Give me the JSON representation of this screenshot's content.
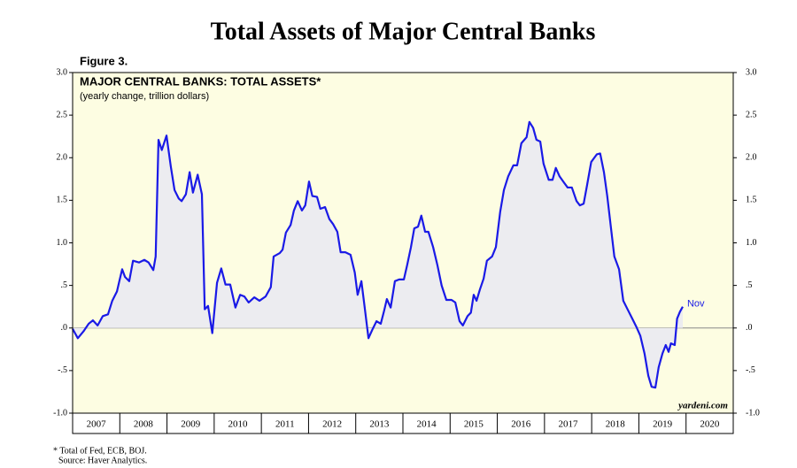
{
  "chart_data": {
    "type": "area_line",
    "title": "Total Assets of Major Central Banks",
    "figure_label": "Figure 3.",
    "inner_title": "MAJOR CENTRAL BANKS: TOTAL ASSETS*",
    "subtitle": "(yearly change, trillion dollars)",
    "end_annotation": "Nov",
    "source_brand": "yardeni.com",
    "footnotes": [
      "*  Total of Fed, ECB, BOJ.",
      "Source: Haver Analytics."
    ],
    "xlim": [
      2007,
      2021
    ],
    "xticks": [
      2007,
      2008,
      2009,
      2010,
      2011,
      2012,
      2013,
      2014,
      2015,
      2016,
      2017,
      2018,
      2019,
      2020
    ],
    "ylim": [
      -1,
      3
    ],
    "yticks": [
      {
        "value": -1,
        "label": "-1.0"
      },
      {
        "value": -0.5,
        "label": "-.5"
      },
      {
        "value": 0,
        "label": ".0"
      },
      {
        "value": 0.5,
        "label": ".5"
      },
      {
        "value": 1,
        "label": "1.0"
      },
      {
        "value": 1.5,
        "label": "1.5"
      },
      {
        "value": 2,
        "label": "2.0"
      },
      {
        "value": 2.5,
        "label": "2.5"
      },
      {
        "value": 3,
        "label": "3.0"
      }
    ],
    "series": [
      {
        "name": "Total assets yearly change",
        "color": "#1a1ae6",
        "fill": "#ececf0",
        "x": [
          2007.0,
          2007.11,
          2007.23,
          2007.34,
          2007.43,
          2007.53,
          2007.64,
          2007.75,
          2007.84,
          2007.94,
          2007.99,
          2008.05,
          2008.11,
          2008.2,
          2008.28,
          2008.41,
          2008.52,
          2008.61,
          2008.71,
          2008.76,
          2008.82,
          2008.89,
          2008.99,
          2009.08,
          2009.16,
          2009.25,
          2009.31,
          2009.4,
          2009.48,
          2009.55,
          2009.65,
          2009.74,
          2009.8,
          2009.87,
          2009.96,
          2010.06,
          2010.15,
          2010.24,
          2010.34,
          2010.45,
          2010.55,
          2010.64,
          2010.73,
          2010.85,
          2010.96,
          2011.09,
          2011.2,
          2011.26,
          2011.39,
          2011.45,
          2011.52,
          2011.62,
          2011.69,
          2011.77,
          2011.86,
          2011.93,
          2012.01,
          2012.08,
          2012.18,
          2012.25,
          2012.35,
          2012.44,
          2012.52,
          2012.61,
          2012.68,
          2012.78,
          2012.89,
          2012.98,
          2013.04,
          2013.12,
          2013.19,
          2013.27,
          2013.36,
          2013.44,
          2013.53,
          2013.6,
          2013.66,
          2013.74,
          2013.83,
          2013.92,
          2014.02,
          2014.09,
          2014.17,
          2014.24,
          2014.32,
          2014.39,
          2014.47,
          2014.54,
          2014.64,
          2014.73,
          2014.82,
          2014.92,
          2015.03,
          2015.11,
          2015.2,
          2015.27,
          2015.37,
          2015.44,
          2015.5,
          2015.56,
          2015.63,
          2015.71,
          2015.78,
          2015.89,
          2015.97,
          2016.06,
          2016.14,
          2016.23,
          2016.34,
          2016.42,
          2016.51,
          2016.62,
          2016.68,
          2016.76,
          2016.83,
          2016.91,
          2016.98,
          2017.09,
          2017.17,
          2017.24,
          2017.32,
          2017.41,
          2017.49,
          2017.58,
          2017.68,
          2017.75,
          2017.83,
          2017.9,
          2017.99,
          2018.11,
          2018.18,
          2018.26,
          2018.33,
          2018.41,
          2018.48,
          2018.58,
          2018.67,
          2018.76,
          2018.86,
          2018.95,
          2019.03,
          2019.12,
          2019.2,
          2019.27,
          2019.35,
          2019.42,
          2019.5,
          2019.57,
          2019.63,
          2019.68,
          2019.76,
          2019.81,
          2019.87,
          2019.93
        ],
        "values": [
          -0.01,
          -0.12,
          -0.04,
          0.05,
          0.09,
          0.03,
          0.14,
          0.16,
          0.32,
          0.43,
          0.55,
          0.69,
          0.6,
          0.55,
          0.79,
          0.77,
          0.8,
          0.77,
          0.68,
          0.84,
          2.21,
          2.09,
          2.26,
          1.9,
          1.62,
          1.52,
          1.49,
          1.57,
          1.83,
          1.59,
          1.8,
          1.57,
          0.22,
          0.26,
          -0.06,
          0.53,
          0.7,
          0.51,
          0.51,
          0.24,
          0.39,
          0.37,
          0.3,
          0.36,
          0.32,
          0.37,
          0.48,
          0.84,
          0.88,
          0.92,
          1.12,
          1.21,
          1.38,
          1.49,
          1.38,
          1.44,
          1.72,
          1.55,
          1.54,
          1.4,
          1.42,
          1.28,
          1.22,
          1.13,
          0.89,
          0.89,
          0.86,
          0.65,
          0.39,
          0.55,
          0.24,
          -0.12,
          -0.01,
          0.08,
          0.05,
          0.2,
          0.34,
          0.24,
          0.55,
          0.57,
          0.57,
          0.74,
          0.95,
          1.17,
          1.19,
          1.32,
          1.13,
          1.13,
          0.95,
          0.74,
          0.5,
          0.33,
          0.33,
          0.3,
          0.08,
          0.03,
          0.14,
          0.18,
          0.39,
          0.32,
          0.45,
          0.58,
          0.79,
          0.84,
          0.95,
          1.36,
          1.62,
          1.78,
          1.91,
          1.91,
          2.17,
          2.24,
          2.42,
          2.35,
          2.21,
          2.19,
          1.93,
          1.74,
          1.74,
          1.88,
          1.78,
          1.71,
          1.65,
          1.65,
          1.49,
          1.44,
          1.46,
          1.67,
          1.95,
          2.04,
          2.05,
          1.83,
          1.55,
          1.17,
          0.84,
          0.69,
          0.32,
          0.22,
          0.11,
          0.01,
          -0.09,
          -0.3,
          -0.56,
          -0.69,
          -0.7,
          -0.46,
          -0.3,
          -0.2,
          -0.28,
          -0.18,
          -0.2,
          0.11,
          0.19,
          0.25
        ]
      }
    ],
    "background": "#fdfde2"
  }
}
